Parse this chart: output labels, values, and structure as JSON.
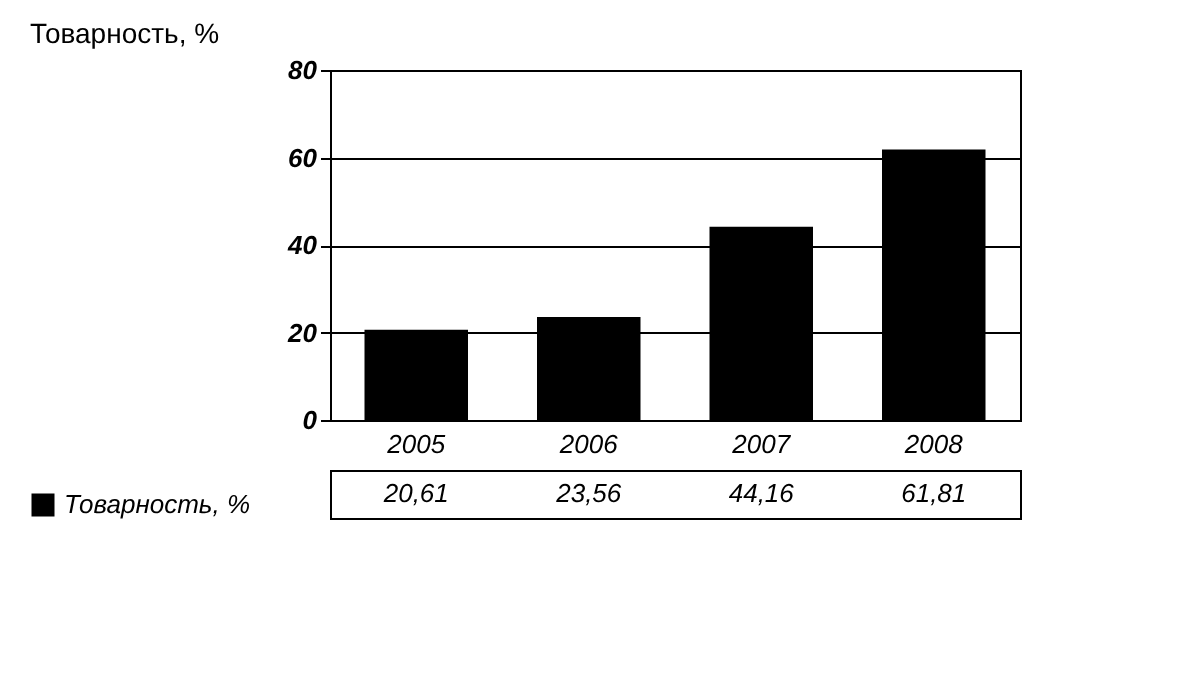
{
  "chart_data": {
    "type": "bar",
    "title": "Товарность, %",
    "categories": [
      "2005",
      "2006",
      "2007",
      "2008"
    ],
    "series": [
      {
        "name": "Товарность, %",
        "color": "#000000",
        "values": [
          20.61,
          23.56,
          44.16,
          61.81
        ],
        "value_labels": [
          "20,61",
          "23,56",
          "44,16",
          "61,81"
        ]
      }
    ],
    "ylim": [
      0,
      80
    ],
    "yticks": [
      0,
      20,
      40,
      60,
      80
    ],
    "grid": "y",
    "legend": "bottom left"
  }
}
